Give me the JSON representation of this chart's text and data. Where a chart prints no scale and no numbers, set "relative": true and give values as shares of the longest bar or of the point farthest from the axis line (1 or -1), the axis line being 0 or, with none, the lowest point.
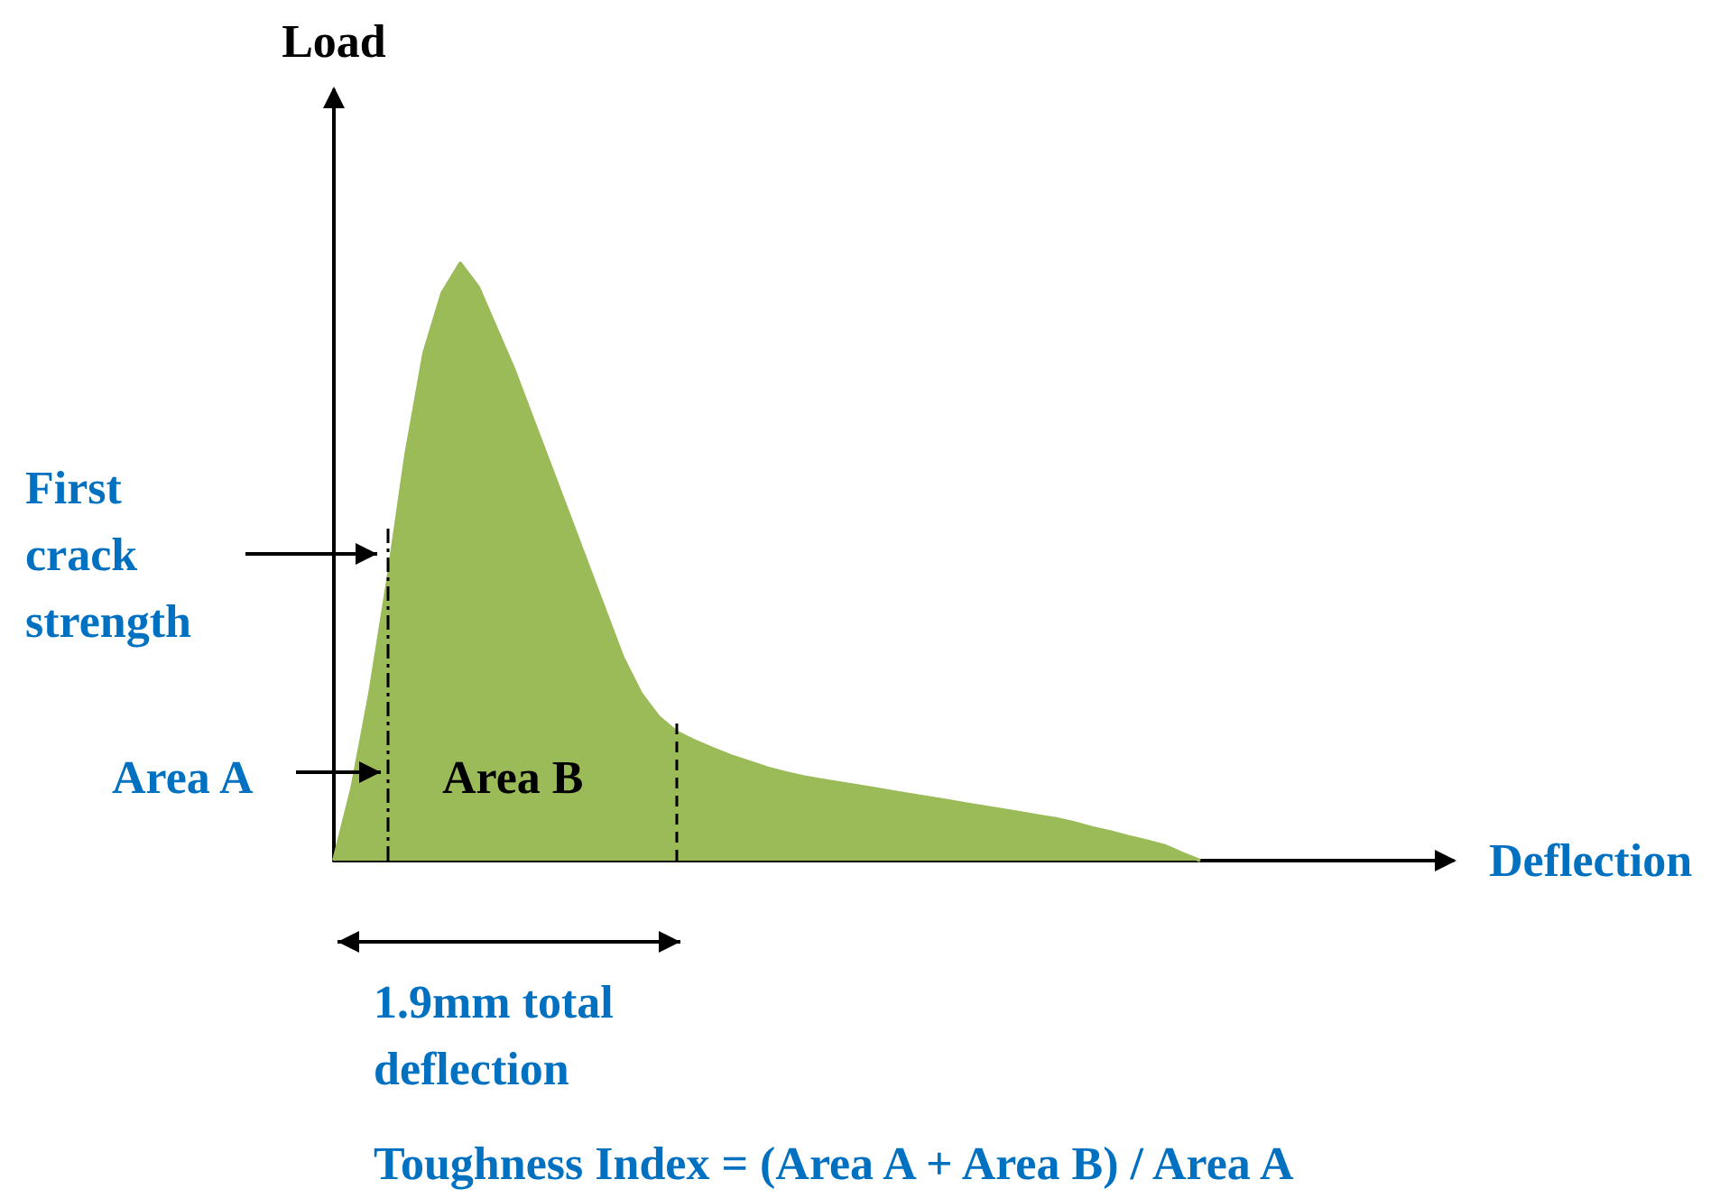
{
  "chart_data": {
    "type": "area",
    "relative": true,
    "xlabel": "Deflection",
    "ylabel": "Load",
    "categories": [
      null,
      null,
      null,
      null,
      null,
      null,
      null,
      null,
      null,
      null,
      null,
      null,
      null,
      null,
      null,
      null,
      null,
      null,
      null,
      null,
      null,
      null,
      null,
      null,
      null,
      null,
      null,
      null,
      null,
      null,
      null,
      null,
      null,
      null,
      null,
      null,
      null,
      null,
      null,
      null,
      null,
      null,
      null,
      null,
      null,
      null,
      null,
      null,
      null,
      null,
      null,
      null,
      null,
      null,
      null,
      null,
      null,
      null,
      null,
      null,
      null,
      null,
      null
    ],
    "series": [
      {
        "color": "#9bbb59",
        "values": [
          0,
          0.12,
          0.28,
          0.47,
          0.68,
          0.85,
          0.95,
          1,
          0.96,
          0.89,
          0.82,
          0.74,
          0.66,
          0.58,
          0.5,
          0.42,
          0.34,
          0.28,
          0.24,
          0.215,
          0.2,
          0.187,
          0.175,
          0.165,
          0.155,
          0.147,
          0.14,
          0.135,
          0.13,
          0.125,
          0.12,
          0.115,
          0.11,
          0.105,
          0.1,
          0.095,
          0.09,
          0.085,
          0.08,
          0.075,
          0.07,
          0.063,
          0.055,
          0.048,
          0.04,
          0.033,
          0.025,
          0.012,
          0,
          null,
          null,
          null,
          null,
          null,
          null,
          null,
          null,
          null,
          null,
          null,
          null,
          null,
          null
        ]
      }
    ],
    "annotations": [
      "First crack strength",
      "Area A",
      "Area B",
      "1.9mm total deflection",
      "Toughness Index = (Area A + Area B) / Area A"
    ]
  }
}
